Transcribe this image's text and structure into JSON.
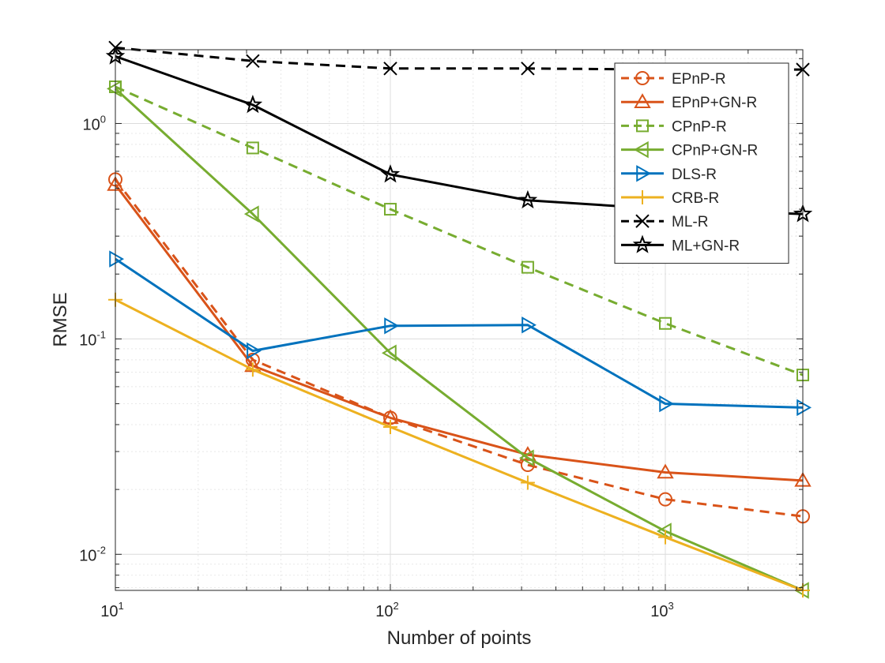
{
  "chart_data": {
    "type": "line",
    "xlabel": "Number of points",
    "ylabel": "RMSE",
    "xscale": "log",
    "yscale": "log",
    "xlim": [
      10,
      3162
    ],
    "ylim": [
      0.0068,
      2.2
    ],
    "grid": true,
    "minor_grid": true,
    "legend_position": "top-right",
    "x_ticks": [
      {
        "value": 10,
        "base": "10",
        "exp": "1"
      },
      {
        "value": 100,
        "base": "10",
        "exp": "2"
      },
      {
        "value": 1000,
        "base": "10",
        "exp": "3"
      }
    ],
    "y_ticks": [
      {
        "value": 0.01,
        "base": "10",
        "exp": "-2"
      },
      {
        "value": 0.1,
        "base": "10",
        "exp": "-1"
      },
      {
        "value": 1,
        "base": "10",
        "exp": "0"
      }
    ],
    "x": [
      10,
      31.6,
      100,
      316,
      1000,
      3162
    ],
    "series": [
      {
        "name": "EPnP-R",
        "color": "#D95319",
        "dash": "dashed",
        "marker": "circle",
        "values": [
          0.55,
          0.08,
          0.043,
          0.026,
          0.018,
          0.015
        ]
      },
      {
        "name": "EPnP+GN-R",
        "color": "#D95319",
        "dash": "solid",
        "marker": "triangle-up",
        "values": [
          0.52,
          0.075,
          0.043,
          0.029,
          0.024,
          0.022
        ]
      },
      {
        "name": "CPnP-R",
        "color": "#77AC30",
        "dash": "dashed",
        "marker": "square",
        "values": [
          1.48,
          0.77,
          0.4,
          0.215,
          0.118,
          0.068
        ]
      },
      {
        "name": "CPnP+GN-R",
        "color": "#77AC30",
        "dash": "solid",
        "marker": "triangle-left",
        "values": [
          1.45,
          0.38,
          0.086,
          0.028,
          0.0128,
          0.0068
        ]
      },
      {
        "name": "DLS-R",
        "color": "#0072BD",
        "dash": "solid",
        "marker": "triangle-right",
        "values": [
          0.235,
          0.088,
          0.115,
          0.116,
          0.05,
          0.048
        ]
      },
      {
        "name": "CRB-R",
        "color": "#EDB120",
        "dash": "solid",
        "marker": "plus",
        "values": [
          0.152,
          0.072,
          0.039,
          0.0215,
          0.012,
          0.0068
        ]
      },
      {
        "name": "ML-R",
        "color": "#000000",
        "dash": "dashed",
        "marker": "x",
        "values": [
          2.25,
          1.95,
          1.8,
          1.8,
          1.78,
          1.78
        ]
      },
      {
        "name": "ML+GN-R",
        "color": "#000000",
        "dash": "solid",
        "marker": "star",
        "values": [
          2.05,
          1.22,
          0.58,
          0.44,
          0.4,
          0.38
        ]
      }
    ]
  }
}
